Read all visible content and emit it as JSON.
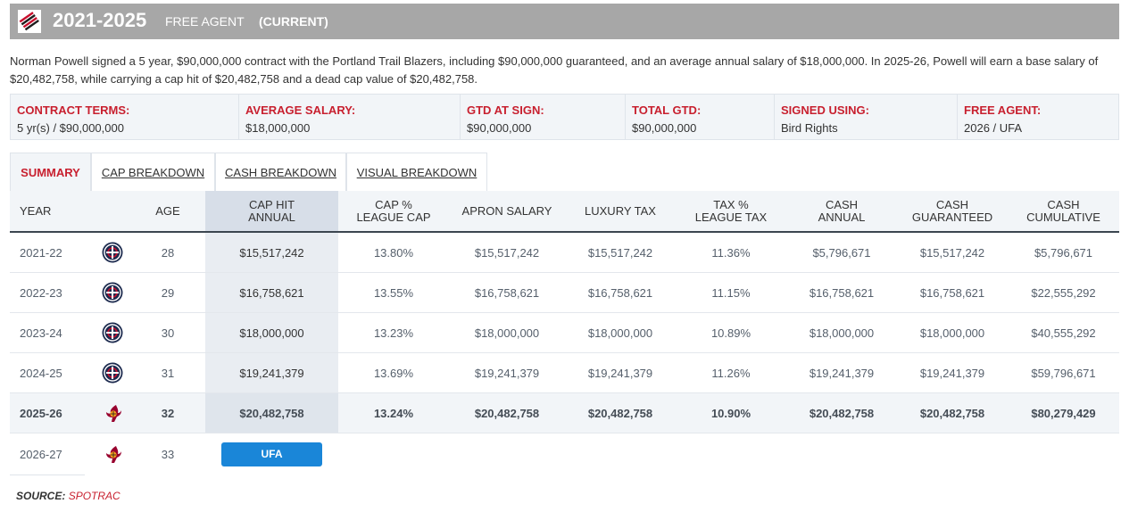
{
  "header": {
    "years": "2021-2025",
    "status": "FREE AGENT",
    "current": "(CURRENT)",
    "colors": {
      "bar": "#a7a7a7",
      "text": "#ffffff"
    }
  },
  "description": "Norman Powell signed a 5 year, $90,000,000 contract with the Portland Trail Blazers, including $90,000,000 guaranteed, and an average annual salary of $18,000,000. In 2025-26, Powell will earn a base salary of $20,482,758, while carrying a cap hit of $20,482,758 and a dead cap value of $20,482,758.",
  "terms": [
    {
      "label": "CONTRACT TERMS:",
      "value": "5 yr(s) / $90,000,000"
    },
    {
      "label": "AVERAGE SALARY:",
      "value": "$18,000,000"
    },
    {
      "label": "GTD AT SIGN:",
      "value": "$90,000,000"
    },
    {
      "label": "TOTAL GTD:",
      "value": "$90,000,000"
    },
    {
      "label": "SIGNED USING:",
      "value": "Bird Rights"
    },
    {
      "label": "FREE AGENT:",
      "value": "2026 / UFA"
    }
  ],
  "tabs": [
    {
      "label": "SUMMARY",
      "active": true
    },
    {
      "label": "CAP BREAKDOWN",
      "active": false
    },
    {
      "label": "CASH BREAKDOWN",
      "active": false
    },
    {
      "label": "VISUAL BREAKDOWN",
      "active": false
    }
  ],
  "table": {
    "headers": [
      "YEAR",
      "",
      "AGE",
      "CAP HIT\nANNUAL",
      "CAP %\nLEAGUE CAP",
      "APRON SALARY",
      "LUXURY TAX",
      "TAX %\nLEAGUE TAX",
      "CASH\nANNUAL",
      "CASH\nGUARANTEED",
      "CASH\nCUMULATIVE"
    ],
    "rows": [
      {
        "year": "2021-22",
        "team_icon": "clippers-logo-icon",
        "age": "28",
        "cap_hit": "$15,517,242",
        "cap_pct": "13.80%",
        "apron": "$15,517,242",
        "lux_tax": "$15,517,242",
        "tax_pct": "11.36%",
        "cash_annual": "$5,796,671",
        "cash_gtd": "$15,517,242",
        "cash_cum": "$5,796,671"
      },
      {
        "year": "2022-23",
        "team_icon": "clippers-logo-icon",
        "age": "29",
        "cap_hit": "$16,758,621",
        "cap_pct": "13.55%",
        "apron": "$16,758,621",
        "lux_tax": "$16,758,621",
        "tax_pct": "11.15%",
        "cash_annual": "$16,758,621",
        "cash_gtd": "$16,758,621",
        "cash_cum": "$22,555,292"
      },
      {
        "year": "2023-24",
        "team_icon": "clippers-logo-icon",
        "age": "30",
        "cap_hit": "$18,000,000",
        "cap_pct": "13.23%",
        "apron": "$18,000,000",
        "lux_tax": "$18,000,000",
        "tax_pct": "10.89%",
        "cash_annual": "$18,000,000",
        "cash_gtd": "$18,000,000",
        "cash_cum": "$40,555,292"
      },
      {
        "year": "2024-25",
        "team_icon": "clippers-logo-icon",
        "age": "31",
        "cap_hit": "$19,241,379",
        "cap_pct": "13.69%",
        "apron": "$19,241,379",
        "lux_tax": "$19,241,379",
        "tax_pct": "11.26%",
        "cash_annual": "$19,241,379",
        "cash_gtd": "$19,241,379",
        "cash_cum": "$59,796,671"
      },
      {
        "year": "2025-26",
        "team_icon": "heat-logo-icon",
        "age": "32",
        "cap_hit": "$20,482,758",
        "cap_pct": "13.24%",
        "apron": "$20,482,758",
        "lux_tax": "$20,482,758",
        "tax_pct": "10.90%",
        "cash_annual": "$20,482,758",
        "cash_gtd": "$20,482,758",
        "cash_cum": "$80,279,429"
      }
    ],
    "future_row": {
      "year": "2026-27",
      "team_icon": "heat-logo-icon",
      "age": "33",
      "badge": "UFA"
    }
  },
  "source": {
    "label": "SOURCE:",
    "value": "SPOTRAC"
  },
  "colors": {
    "accent_red": "#c8202f",
    "badge_blue": "#1a86d8",
    "header_rule": "#3c4650"
  }
}
